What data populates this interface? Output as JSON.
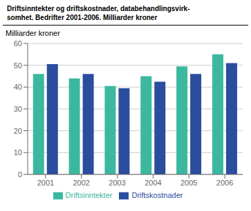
{
  "chart_data": {
    "type": "bar",
    "title": "Driftsinntekter og driftskostnader, databehandlingsvirk-\nsomhet. Bedrifter 2001-2006. Milliarder kroner",
    "ylabel": "Milliarder kroner",
    "categories": [
      "2001",
      "2002",
      "2003",
      "2004",
      "2005",
      "2006"
    ],
    "series": [
      {
        "name": "Driftsinntekter",
        "color": "#3cb8a0",
        "values": [
          46,
          44,
          40.5,
          45,
          49.5,
          55
        ]
      },
      {
        "name": "Driftskostnader",
        "color": "#2b4d9e",
        "values": [
          50.5,
          46,
          39.5,
          42.5,
          46,
          51
        ]
      }
    ],
    "ylim": [
      0,
      60
    ],
    "yticks": [
      0,
      10,
      20,
      30,
      40,
      50,
      60
    ],
    "grid": true,
    "legend": "bottom"
  }
}
